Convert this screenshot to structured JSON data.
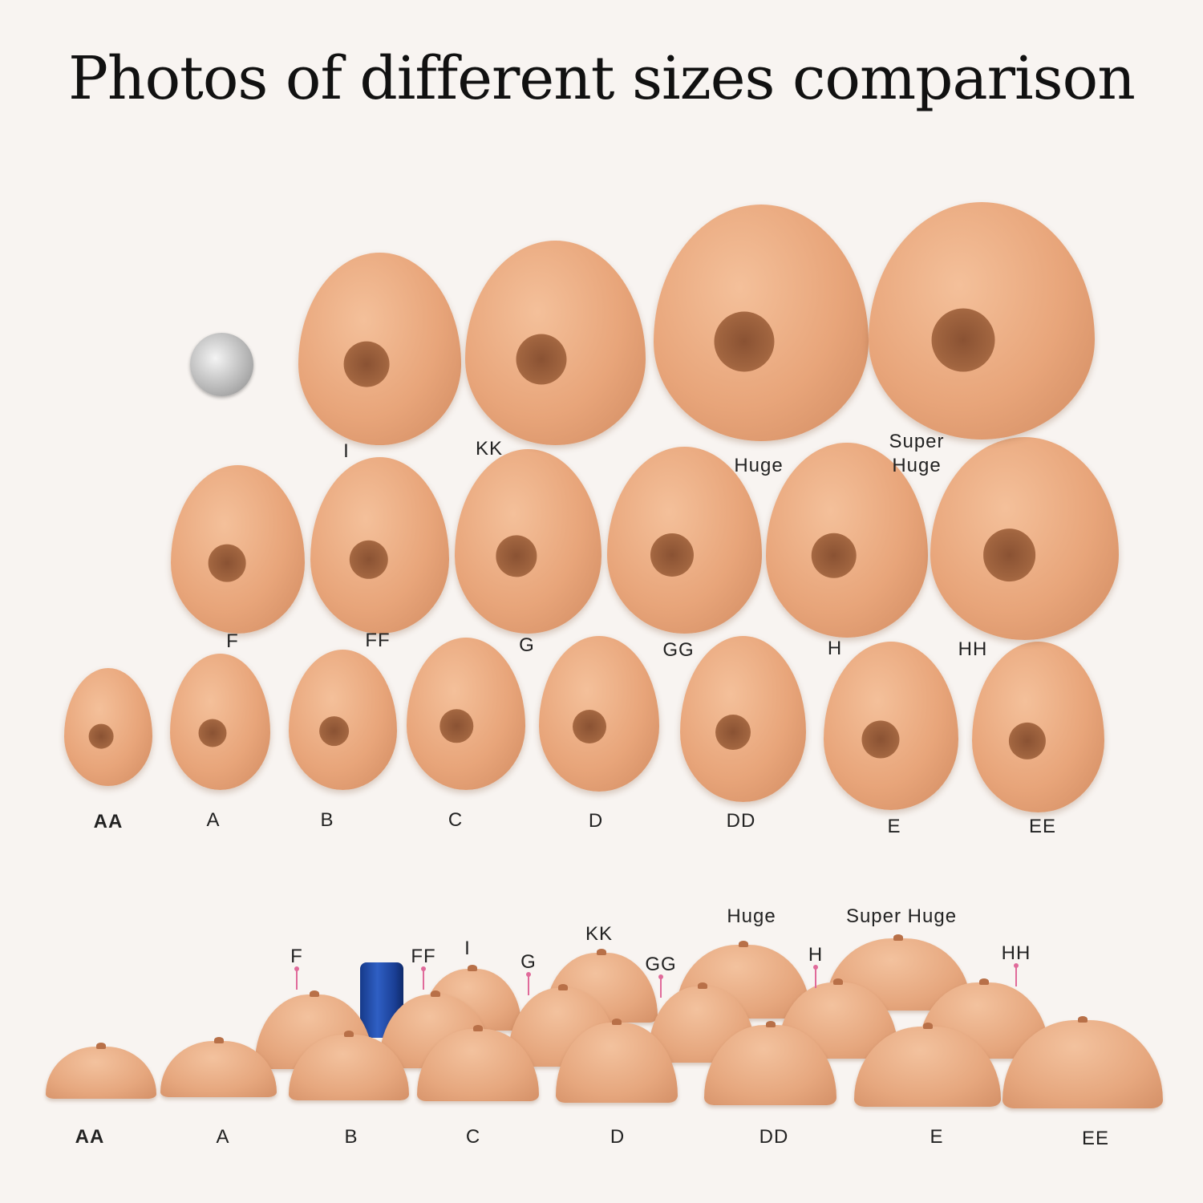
{
  "title": "Photos of different sizes comparison",
  "colors": {
    "background": "#f8f4f1",
    "skin": "#e8a57a",
    "areola": "#8a5233",
    "pin": "#e06a9a",
    "can_blue": "#2f5fc4"
  },
  "front_view": {
    "row_top": [
      "I",
      "KK",
      "Huge",
      "Super Huge"
    ],
    "row_middle": [
      "F",
      "FF",
      "G",
      "GG",
      "H",
      "HH"
    ],
    "row_bottom": [
      "AA",
      "A",
      "B",
      "C",
      "D",
      "DD",
      "E",
      "EE"
    ],
    "reference": "soda can top"
  },
  "side_view": {
    "front_row": [
      "AA",
      "A",
      "B",
      "C",
      "D",
      "DD",
      "E",
      "EE"
    ],
    "middle_row": [
      "F",
      "FF",
      "G",
      "GG",
      "H",
      "HH"
    ],
    "back_row": [
      "I",
      "KK",
      "Huge",
      "Super Huge"
    ],
    "reference": "soda can"
  }
}
